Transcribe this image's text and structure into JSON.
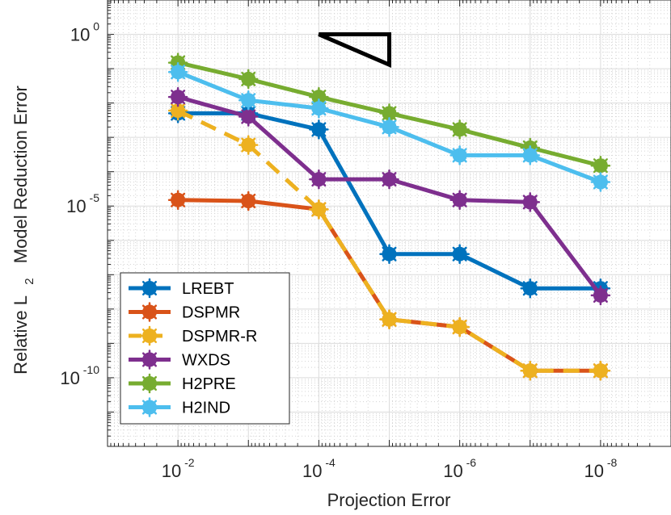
{
  "chart_data": {
    "type": "line",
    "xlabel": "Projection Error",
    "ylabel": "Relative L",
    "ylabel_subscript": "2",
    "ylabel_suffix": "Model Reduction Error",
    "xscale": "log",
    "yscale": "log",
    "x_reversed": true,
    "xlim": [
      0.1,
      1e-09
    ],
    "ylim": [
      1e-12,
      10
    ],
    "grid": true,
    "legend_location": "bottom-left",
    "x_ticks": [
      {
        "base": "10",
        "exp": "-2",
        "value": 0.01
      },
      {
        "base": "10",
        "exp": "-4",
        "value": 0.0001
      },
      {
        "base": "10",
        "exp": "-6",
        "value": 1e-06
      },
      {
        "base": "10",
        "exp": "-8",
        "value": 1e-08
      }
    ],
    "y_ticks": [
      {
        "base": "10",
        "exp": "0",
        "value": 1
      },
      {
        "base": "10",
        "exp": "-5",
        "value": 1e-05
      },
      {
        "base": "10",
        "exp": "-10",
        "value": 1e-10
      }
    ],
    "x": [
      0.01,
      0.001,
      0.0001,
      1e-05,
      1e-06,
      1e-07,
      1e-08
    ],
    "series": [
      {
        "name": "LREBT",
        "color": "#0072BD",
        "dashed": false,
        "values": [
          0.005,
          0.005,
          0.0017,
          4e-07,
          4e-07,
          4e-08,
          4e-08
        ]
      },
      {
        "name": "DSPMR",
        "color": "#D95319",
        "dashed": false,
        "values": [
          1.5e-05,
          1.4e-05,
          8e-06,
          5e-09,
          3e-09,
          1.6e-10,
          1.6e-10
        ]
      },
      {
        "name": "DSPMR-R",
        "color": "#EDB120",
        "dashed": true,
        "values": [
          0.006,
          0.0006,
          8e-06,
          5e-09,
          3e-09,
          1.6e-10,
          1.6e-10
        ]
      },
      {
        "name": "WXDS",
        "color": "#7E2F8E",
        "dashed": false,
        "values": [
          0.015,
          0.004,
          6e-05,
          6e-05,
          1.5e-05,
          1.3e-05,
          2.5e-08
        ]
      },
      {
        "name": "H2PRE",
        "color": "#77AC30",
        "dashed": false,
        "values": [
          0.15,
          0.05,
          0.015,
          0.005,
          0.0017,
          0.0005,
          0.00015
        ]
      },
      {
        "name": "H2IND",
        "color": "#4DBEEE",
        "dashed": false,
        "values": [
          0.08,
          0.012,
          0.007,
          0.002,
          0.0003,
          0.0003,
          5e-05
        ]
      }
    ],
    "slope_triangle": {
      "x1": 0.0001,
      "x2": 1e-05,
      "y1": 1,
      "y2": 0.13
    }
  }
}
